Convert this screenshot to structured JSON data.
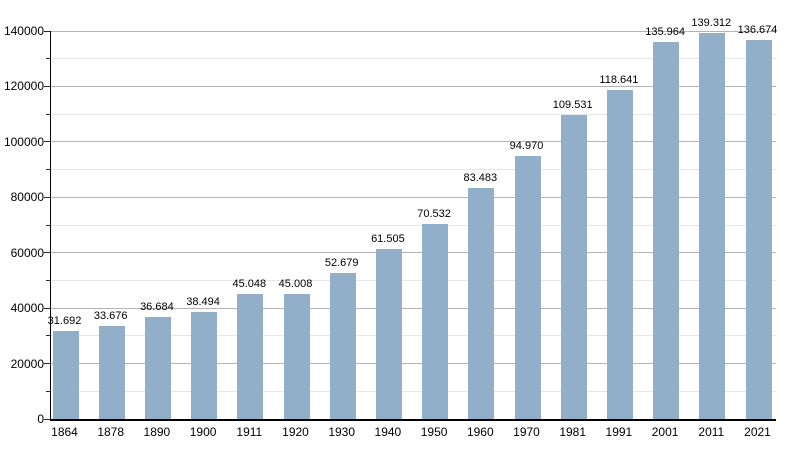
{
  "chart_data": {
    "type": "bar",
    "title": "",
    "categories": [
      "1864",
      "1878",
      "1890",
      "1900",
      "1911",
      "1920",
      "1930",
      "1940",
      "1950",
      "1960",
      "1970",
      "1981",
      "1991",
      "2001",
      "2011",
      "2021"
    ],
    "values": [
      31692,
      33676,
      36684,
      38494,
      45048,
      45008,
      52679,
      61505,
      70532,
      83483,
      94970,
      109531,
      118641,
      135964,
      139312,
      136674
    ],
    "value_labels": [
      "31.692",
      "33.676",
      "36.684",
      "38.494",
      "45.048",
      "45.008",
      "52.679",
      "61.505",
      "70.532",
      "83.483",
      "94.970",
      "109.531",
      "118.641",
      "135.964",
      "139.312",
      "136.674"
    ],
    "xlabel": "",
    "ylabel": "",
    "ylim": [
      0,
      140000
    ],
    "y_major_step": 20000,
    "y_minor_step": 10000,
    "y_tick_labels": [
      "0",
      "20000",
      "40000",
      "60000",
      "80000",
      "100000",
      "120000",
      "140000"
    ],
    "grid": true,
    "legend": null,
    "colors": {
      "bar_fill": "#92afc9",
      "major_gridline": "#b4b4b4",
      "minor_gridline": "#e6e6e6",
      "axis_line": "#000000",
      "label_text": "#000000",
      "background": "#ffffff"
    }
  }
}
